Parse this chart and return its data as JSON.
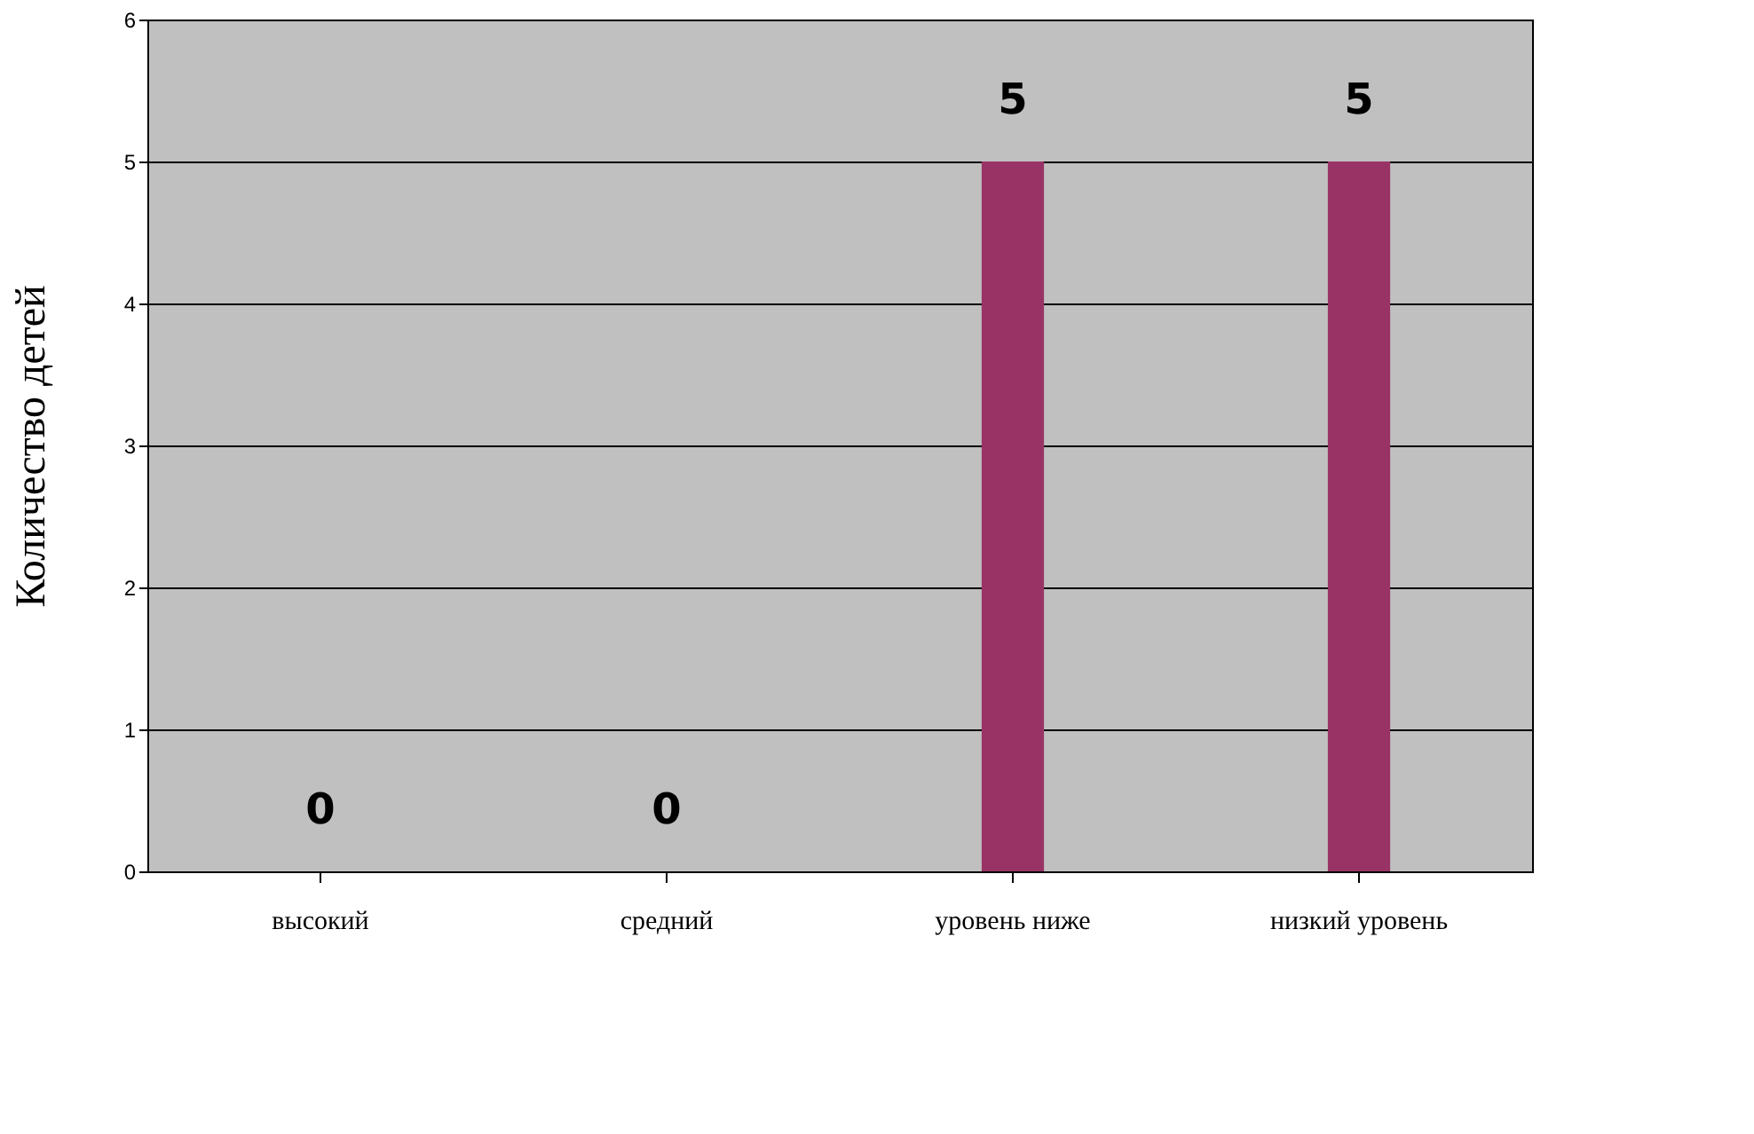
{
  "chart_data": {
    "type": "bar",
    "ylabel": "Количество детей",
    "categories": [
      "высокий",
      "средний",
      "уровень ниже",
      "низкий уровень"
    ],
    "values": [
      0,
      0,
      5,
      5
    ],
    "color": "#993366",
    "ylim": [
      0,
      6
    ],
    "yticks": [
      0,
      1,
      2,
      3,
      4,
      5,
      6
    ],
    "grid": "y",
    "data_labels": true
  }
}
